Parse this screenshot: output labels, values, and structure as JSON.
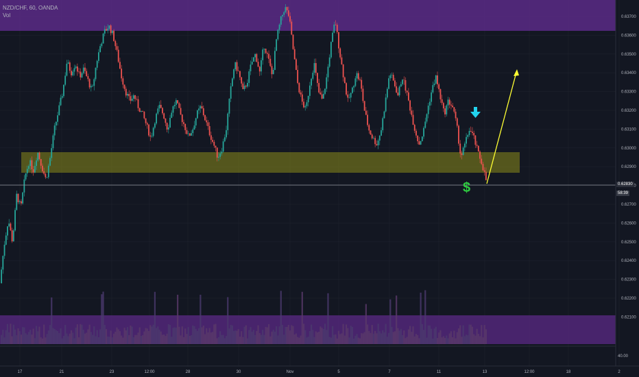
{
  "header": {
    "symbol": "NZD/CHF, 60, OANDA",
    "indicator": "Vol"
  },
  "price_axis": {
    "ticks": [
      "0.63700",
      "0.63600",
      "0.63500",
      "0.63400",
      "0.63300",
      "0.63200",
      "0.63100",
      "0.63000",
      "0.62900",
      "0.62800",
      "0.62700",
      "0.62600",
      "0.62500",
      "0.62400",
      "0.62300",
      "0.62200",
      "0.62100"
    ],
    "current_price": "0.62830",
    "countdown": "58:39",
    "volume_scale": "40.00"
  },
  "time_axis": {
    "labels": [
      "17",
      "21",
      "23",
      "12:00",
      "28",
      "30",
      "Nov",
      "5",
      "7",
      "11",
      "13",
      "12:00",
      "18",
      "2"
    ]
  },
  "annotations": {
    "dollar": "$",
    "down_arrow": "down-arrow-icon"
  },
  "colors": {
    "up": "#26a69a",
    "down": "#ef5350",
    "zone_purple": "#5b2a86",
    "zone_yellow": "#8a8a1a",
    "arrow_yellow": "#ffff33",
    "dollar_green": "#2ecc40",
    "arrow_cyan": "#22d3ee"
  },
  "chart_data": {
    "type": "candlestick",
    "symbol": "NZD/CHF",
    "interval": "60",
    "ylim": [
      0.6225,
      0.6375
    ],
    "x_ticks": [
      "17",
      "21",
      "23",
      "12:00",
      "28",
      "30",
      "Nov",
      "5",
      "7",
      "11",
      "13",
      "12:00",
      "18",
      "2"
    ],
    "close_path": [
      [
        0.6228,
        0.6248,
        0.6262,
        0.625,
        0.6275,
        0.6268,
        0.6285,
        0.6293,
        0.6288,
        0.6298,
        0.629,
        0.6283
      ],
      [
        0.6295,
        0.631,
        0.632,
        0.633,
        0.6346,
        0.634,
        0.6345,
        0.6338,
        0.6342,
        0.6336,
        0.633,
        0.6345,
        0.6355,
        0.6362,
        0.6365,
        0.636,
        0.635,
        0.6338,
        0.633,
        0.6325,
        0.6328,
        0.6322,
        0.6318
      ],
      [
        0.6312,
        0.6305,
        0.6315,
        0.6322,
        0.6318,
        0.631,
        0.632,
        0.6325,
        0.6318,
        0.6312,
        0.6306,
        0.631,
        0.6318,
        0.6322,
        0.6315,
        0.6308,
        0.6302,
        0.6295,
        0.63,
        0.631,
        0.633,
        0.6345,
        0.634,
        0.633,
        0.6335
      ],
      [
        0.6345,
        0.635,
        0.634,
        0.6355,
        0.6348,
        0.6338,
        0.6358,
        0.6368,
        0.6375,
        0.637,
        0.6352,
        0.6335,
        0.6325,
        0.632,
        0.6335,
        0.6345,
        0.633,
        0.6325,
        0.6338,
        0.6355,
        0.6368,
        0.6352,
        0.6338,
        0.6325,
        0.633,
        0.634,
        0.6335,
        0.632,
        0.631
      ],
      [
        0.6305,
        0.6302,
        0.631,
        0.6325,
        0.634,
        0.6335,
        0.6328,
        0.6338,
        0.633,
        0.632,
        0.631,
        0.6302,
        0.6308,
        0.632,
        0.633,
        0.6338,
        0.6328,
        0.6318,
        0.6325,
        0.6322,
        0.6312,
        0.6295,
        0.6302,
        0.631,
        0.6306,
        0.6298,
        0.6292,
        0.6283
      ]
    ],
    "current_price": 0.6283,
    "horizontal_zones": [
      {
        "name": "resistance zone",
        "from": 0.6366,
        "to": 0.6378
      },
      {
        "name": "support zone",
        "from": 0.629,
        "to": 0.63
      }
    ],
    "volume_zone": "bottom",
    "projection_arrow": {
      "from_price": 0.6283,
      "to_price": 0.6345
    }
  }
}
